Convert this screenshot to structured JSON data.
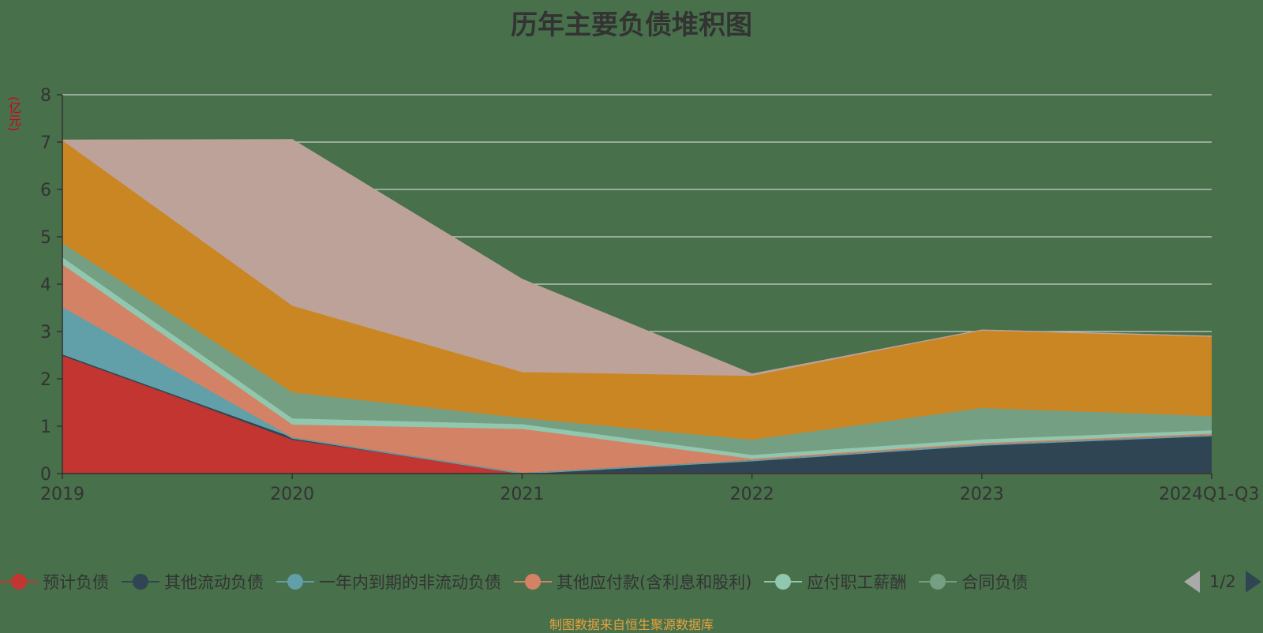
{
  "chart_data": {
    "type": "area",
    "stacked": true,
    "title": "历年主要负债堆积图",
    "y_unit": "(亿元)",
    "categories": [
      "2019",
      "2020",
      "2021",
      "2022",
      "2023",
      "2024Q1-Q3"
    ],
    "ylim": [
      0,
      8
    ],
    "yticks": [
      "0",
      "1",
      "2",
      "3",
      "4",
      "5",
      "6",
      "7",
      "8"
    ],
    "grid": true,
    "legend_position": "bottom",
    "series": [
      {
        "name": "预计负债",
        "color": "#C23531",
        "values": [
          2.5,
          0.7,
          0,
          0,
          0,
          0
        ]
      },
      {
        "name": "其他流动负债",
        "color": "#2F4554",
        "values": [
          0,
          0.05,
          0,
          0.27,
          0.6,
          0.8
        ]
      },
      {
        "name": "一年内到期的非流动负债",
        "color": "#61A0A8",
        "values": [
          1.0,
          0,
          0,
          0,
          0,
          0
        ]
      },
      {
        "name": "其他应付款(含利息和股利)",
        "color": "#D48265",
        "values": [
          0.9,
          0.27,
          0.93,
          0.03,
          0.03,
          0.03
        ]
      },
      {
        "name": "应付职工薪酬",
        "color": "#91C7AE",
        "values": [
          0.15,
          0.13,
          0.1,
          0.08,
          0.08,
          0.07
        ]
      },
      {
        "name": "合同负债",
        "color": "#749F83",
        "values": [
          0.3,
          0.55,
          0.13,
          0.32,
          0.66,
          0.3
        ]
      },
      {
        "name": "",
        "color": "#CA8622",
        "values": [
          2.17,
          1.83,
          0.97,
          1.35,
          1.65,
          1.7
        ]
      },
      {
        "name": "",
        "color": "#BDA29A",
        "values": [
          0.02,
          3.52,
          1.97,
          0.05,
          0.01,
          0
        ]
      }
    ]
  },
  "legend": {
    "page_label": "1/2"
  },
  "source_text": "制图数据来自恒生聚源数据库"
}
